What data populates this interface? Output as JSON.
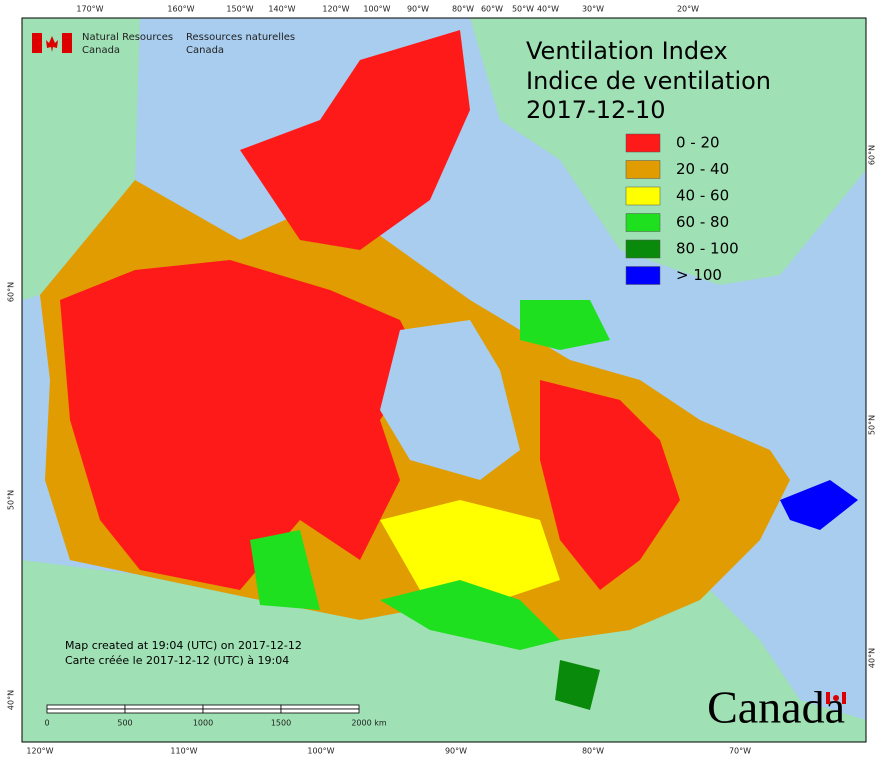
{
  "header": {
    "title_en": "Ventilation Index",
    "title_fr": "Indice de ventilation",
    "date": "2017-12-10"
  },
  "agency": {
    "en_1": "Natural Resources",
    "en_2": "Canada",
    "fr_1": "Ressources naturelles",
    "fr_2": "Canada"
  },
  "legend": [
    {
      "label": "0 - 20",
      "color": "#ff1a1a"
    },
    {
      "label": "20 - 40",
      "color": "#e09c00"
    },
    {
      "label": "40 - 60",
      "color": "#ffff00"
    },
    {
      "label": "60 - 80",
      "color": "#1ee01e"
    },
    {
      "label": "80 - 100",
      "color": "#0a8a0a"
    },
    {
      "label": "> 100",
      "color": "#0000ff"
    }
  ],
  "notes": {
    "created_en": "Map created at 19:04 (UTC) on 2017-12-12",
    "created_fr": "Carte créée le 2017-12-12 (UTC) à 19:04"
  },
  "scale": [
    "0",
    "500",
    "1000",
    "1500",
    "2000 km"
  ],
  "top_longitudes": [
    "170°W",
    "160°W",
    "150°W",
    "140°W",
    "120°W",
    "100°W",
    "90°W",
    "80°W",
    "60°W",
    "50°W",
    "40°W",
    "30°W",
    "20°W"
  ],
  "bottom_longitudes": [
    "120°W",
    "110°W",
    "100°W",
    "90°W",
    "80°W",
    "70°W"
  ],
  "left_latitudes": [
    "60°N",
    "50°N",
    "40°N"
  ],
  "right_latitudes": [
    "60°N",
    "50°N",
    "40°N"
  ],
  "wordmark": "Canada"
}
